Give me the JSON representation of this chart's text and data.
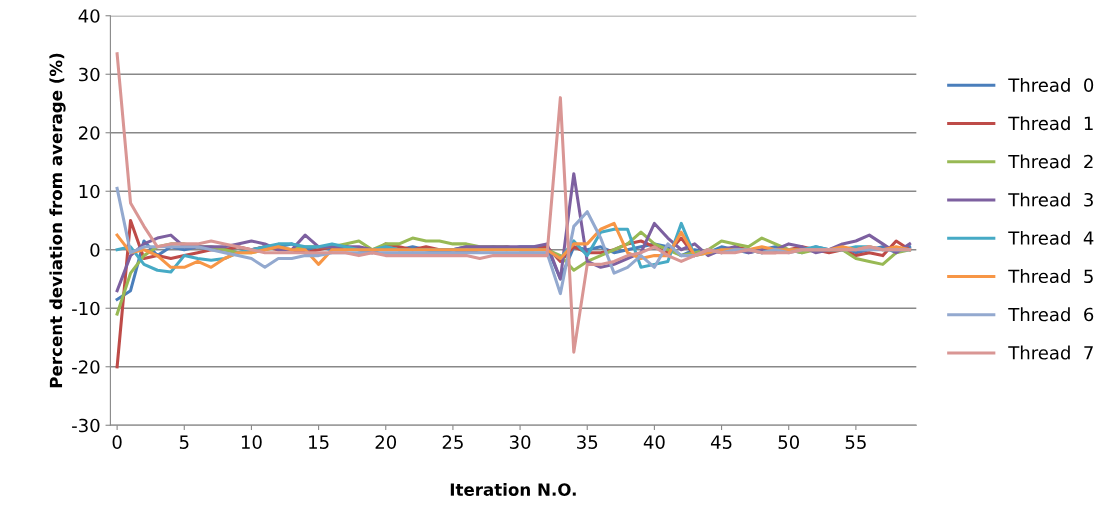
{
  "chart_data": {
    "type": "line",
    "xlabel": "Iteration N.O.",
    "ylabel": "Percent deviation from average (%)",
    "x": [
      0,
      1,
      2,
      3,
      4,
      5,
      6,
      7,
      8,
      9,
      10,
      11,
      12,
      13,
      14,
      15,
      16,
      17,
      18,
      19,
      20,
      21,
      22,
      23,
      24,
      25,
      26,
      27,
      28,
      29,
      30,
      31,
      32,
      33,
      34,
      35,
      36,
      37,
      38,
      39,
      40,
      41,
      42,
      43,
      44,
      45,
      46,
      47,
      48,
      49,
      50,
      51,
      52,
      53,
      54,
      55,
      56,
      57,
      58,
      59
    ],
    "xlim": [
      -0.5,
      59.5
    ],
    "xticks": [
      0,
      5,
      10,
      15,
      20,
      25,
      30,
      35,
      40,
      45,
      50,
      55
    ],
    "ylim": [
      -30,
      40
    ],
    "yticks": [
      -30,
      -20,
      -10,
      0,
      10,
      20,
      30,
      40
    ],
    "grid": "y",
    "legend": "right",
    "marker": "none",
    "line_style": "solid",
    "series": [
      {
        "name": "Thread  0",
        "color": "#4a7ebb",
        "values": [
          -8.5,
          -7,
          1.5,
          -1,
          0.5,
          0,
          0.5,
          0,
          0,
          -0.5,
          0,
          0.5,
          0.5,
          1,
          0,
          0.5,
          0,
          0.5,
          0,
          -0.5,
          0.5,
          0,
          0.5,
          0,
          -0.5,
          0,
          0.5,
          0,
          0.5,
          0,
          0.5,
          0.5,
          0.5,
          -5,
          0.5,
          0,
          0.5,
          -0.5,
          0,
          0.5,
          1,
          0.5,
          -1,
          0,
          -0.5,
          0.5,
          0,
          -0.5,
          0,
          0.5,
          0,
          -0.5,
          0.5,
          0,
          0.5,
          -0.5,
          0,
          0.5,
          -0.5,
          0.5
        ]
      },
      {
        "name": "Thread  1",
        "color": "#be4b48",
        "values": [
          -20,
          5,
          -1.5,
          -1,
          -1.5,
          -1,
          -0.5,
          0,
          0,
          0.5,
          0,
          0.5,
          0,
          0,
          -0.5,
          0,
          0.5,
          0.5,
          0,
          -0.5,
          1,
          0.5,
          0,
          0.5,
          0,
          0,
          -0.5,
          0,
          0,
          0.5,
          0,
          0,
          0.5,
          -2,
          0.5,
          -0.5,
          -0.5,
          0,
          1,
          1.5,
          0.5,
          -0.5,
          2,
          -1,
          0,
          -0.5,
          0.5,
          0,
          -0.5,
          -0.5,
          0,
          0.5,
          0,
          -0.5,
          0,
          -1,
          -0.5,
          -1,
          1.5,
          0
        ]
      },
      {
        "name": "Thread  2",
        "color": "#98b954",
        "values": [
          -11,
          -4,
          -1,
          0.5,
          1,
          1,
          0.5,
          0.5,
          0,
          -0.5,
          -0.5,
          0,
          0.5,
          0,
          0.5,
          0.5,
          0.5,
          1,
          1.5,
          0,
          1,
          1,
          2,
          1.5,
          1.5,
          1,
          1,
          0.5,
          0.5,
          0.5,
          0,
          0,
          0,
          -1,
          -3.5,
          -2,
          -1,
          0,
          1,
          3,
          1,
          0,
          -1,
          -0.5,
          0,
          1.5,
          1,
          0.5,
          2,
          1,
          0,
          -0.5,
          0,
          0,
          0,
          -1.5,
          -2,
          -2.5,
          -0.5,
          0
        ]
      },
      {
        "name": "Thread  3",
        "color": "#7d60a0",
        "values": [
          -7,
          -1,
          1,
          2,
          2.5,
          0.5,
          0.5,
          0.5,
          0.5,
          1,
          1.5,
          1,
          0,
          0,
          2.5,
          0.5,
          0.5,
          0.5,
          0.5,
          0,
          0,
          0,
          0,
          0,
          0,
          0,
          0.5,
          0.5,
          0.5,
          0.5,
          0.5,
          0.5,
          1,
          -5,
          13,
          -2,
          -3,
          -2.5,
          -1.5,
          -0.5,
          4.5,
          2,
          0,
          1,
          -1,
          0,
          0.5,
          -0.5,
          0,
          0,
          1,
          0.5,
          -0.5,
          0,
          1,
          1.5,
          2.5,
          1,
          -0.5,
          1
        ]
      },
      {
        "name": "Thread  4",
        "color": "#46aac5",
        "values": [
          0,
          0.5,
          -2.5,
          -3.5,
          -3.8,
          -1,
          -1.5,
          -1.8,
          -1.5,
          -0.5,
          0,
          0.5,
          1,
          1,
          0.5,
          0.5,
          1,
          0.5,
          0,
          0,
          0.5,
          0,
          0,
          0,
          0,
          0,
          0,
          0,
          0,
          0,
          0,
          0,
          0,
          -1.5,
          1.5,
          -1,
          3,
          3.5,
          3.5,
          -3,
          -2.5,
          -2,
          4.5,
          -1,
          -0.5,
          0,
          0,
          0,
          -0.5,
          0,
          0,
          0,
          0.5,
          0,
          0,
          0.5,
          0.5,
          0,
          0,
          0
        ]
      },
      {
        "name": "Thread  5",
        "color": "#f79646",
        "values": [
          2.5,
          -0.5,
          0,
          -1,
          -3,
          -3,
          -2,
          -3,
          -1.5,
          -0.5,
          -0.5,
          0,
          0.5,
          0,
          0,
          -2.5,
          0,
          0,
          0,
          0,
          0,
          0,
          0,
          0,
          0,
          0,
          0,
          0,
          0,
          0,
          0,
          0,
          0,
          -1.5,
          1,
          1,
          3.5,
          4.5,
          -0.5,
          -1.5,
          -1,
          -1,
          3,
          -1,
          -0.5,
          0,
          0,
          0,
          0.5,
          0,
          0,
          0,
          0,
          0,
          0.5,
          0,
          0.5,
          0,
          0.5,
          0
        ]
      },
      {
        "name": "Thread  6",
        "color": "#93a9cf",
        "values": [
          10.5,
          -0.5,
          0.5,
          0.5,
          0.5,
          0.5,
          0.5,
          0,
          -0.5,
          -1,
          -1.5,
          -3,
          -1.5,
          -1.5,
          -1,
          -1,
          -0.5,
          -0.5,
          -0.5,
          -0.5,
          -0.5,
          -0.5,
          -0.5,
          -0.5,
          -0.5,
          -0.5,
          -0.5,
          -0.5,
          -0.5,
          -0.5,
          -0.5,
          -0.5,
          -0.5,
          -7.5,
          4,
          6.5,
          2,
          -4,
          -3,
          -1,
          -3,
          1,
          -1,
          -1,
          0,
          -0.5,
          0,
          0,
          -0.5,
          0,
          -0.5,
          0,
          0,
          0,
          0,
          0,
          0,
          0,
          0,
          0
        ]
      },
      {
        "name": "Thread  7",
        "color": "#d99694",
        "values": [
          33.5,
          8,
          4,
          0.5,
          1,
          1,
          1,
          1.5,
          1,
          0.5,
          0,
          -0.5,
          -0.5,
          -0.5,
          -0.5,
          -0.5,
          -0.5,
          -0.5,
          -1,
          -0.5,
          -1,
          -1,
          -1,
          -1,
          -1,
          -1,
          -1,
          -1.5,
          -1,
          -1,
          -1,
          -1,
          -1,
          26,
          -17.5,
          -2.5,
          -2.5,
          -2,
          -1,
          -0.5,
          0.5,
          -1,
          -2,
          -1,
          0,
          -0.5,
          -0.5,
          0,
          -0.5,
          -0.5,
          -0.5,
          0,
          0,
          0,
          0,
          0,
          0.5,
          0,
          0,
          0
        ]
      }
    ]
  }
}
